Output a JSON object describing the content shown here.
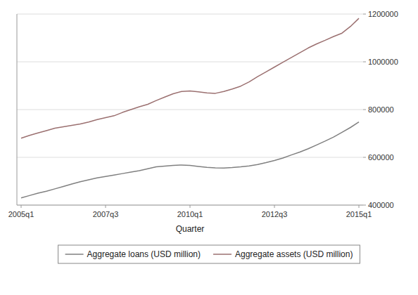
{
  "chart_data": {
    "type": "line",
    "x_label": "Quarter",
    "categories": [
      "2005q1",
      null,
      null,
      null,
      null,
      null,
      null,
      null,
      null,
      null,
      "2007q3",
      null,
      null,
      null,
      null,
      null,
      null,
      null,
      null,
      null,
      "2010q1",
      null,
      null,
      null,
      null,
      null,
      null,
      null,
      null,
      null,
      "2012q3",
      null,
      null,
      null,
      null,
      null,
      null,
      null,
      null,
      null,
      "2015q1"
    ],
    "series": [
      {
        "name": "Aggregate loans (USD million)",
        "color": "#808080",
        "values": [
          430000,
          440000,
          450000,
          458000,
          468000,
          478000,
          488000,
          498000,
          506000,
          514000,
          520000,
          526000,
          532000,
          538000,
          544000,
          552000,
          560000,
          563000,
          566000,
          568000,
          566000,
          562000,
          558000,
          556000,
          555000,
          557000,
          560000,
          564000,
          570000,
          578000,
          587000,
          597000,
          610000,
          622000,
          636000,
          652000,
          668000,
          685000,
          705000,
          725000,
          748000
        ]
      },
      {
        "name": "Aggregate assets (USD million)",
        "color": "#9b7070",
        "values": [
          680000,
          692000,
          702000,
          712000,
          722000,
          728000,
          734000,
          740000,
          748000,
          758000,
          766000,
          774000,
          788000,
          800000,
          812000,
          822000,
          838000,
          852000,
          866000,
          876000,
          878000,
          874000,
          870000,
          868000,
          876000,
          886000,
          898000,
          916000,
          938000,
          958000,
          978000,
          998000,
          1018000,
          1038000,
          1058000,
          1075000,
          1090000,
          1106000,
          1120000,
          1148000,
          1182000
        ]
      }
    ],
    "ylim": [
      400000,
      1200000
    ],
    "yticks": [
      400000,
      600000,
      800000,
      1000000,
      1200000
    ],
    "grid": true,
    "legend": "bottom"
  }
}
